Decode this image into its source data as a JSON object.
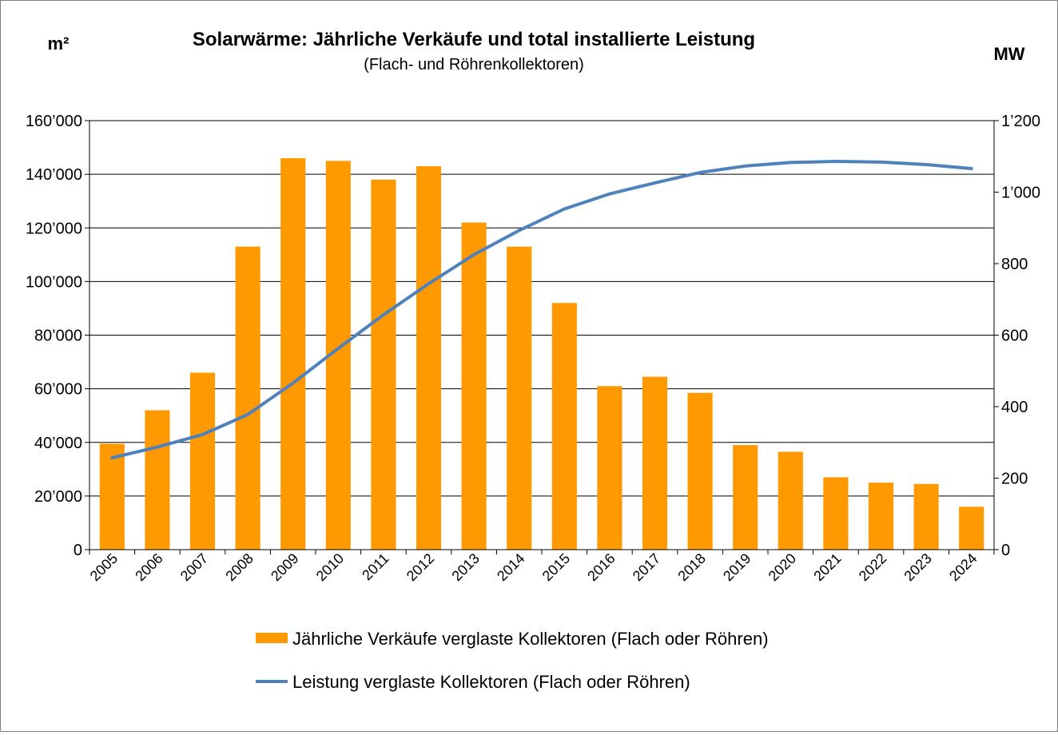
{
  "chart_data": {
    "type": "bar",
    "title": "Solarwärme: Jährliche Verkäufe und total installierte Leistung",
    "subtitle": "(Flach- und Röhrenkollektoren)",
    "ylabel_left": "m²",
    "ylabel_right": "MW",
    "categories": [
      "2005",
      "2006",
      "2007",
      "2008",
      "2009",
      "2010",
      "2011",
      "2012",
      "2013",
      "2014",
      "2015",
      "2016",
      "2017",
      "2018",
      "2019",
      "2020",
      "2021",
      "2022",
      "2023",
      "2024"
    ],
    "left_axis": {
      "ylim": [
        0,
        160000
      ],
      "ticks": [
        0,
        20000,
        40000,
        60000,
        80000,
        100000,
        120000,
        140000,
        160000
      ],
      "tick_labels": [
        "0",
        "20’000",
        "40’000",
        "60’000",
        "80’000",
        "100’000",
        "120’000",
        "140’000",
        "160’000"
      ]
    },
    "right_axis": {
      "ylim": [
        0,
        1200
      ],
      "ticks": [
        0,
        200,
        400,
        600,
        800,
        1000,
        1200
      ],
      "tick_labels": [
        "0",
        "200",
        "400",
        "600",
        "800",
        "1’000",
        "1’200"
      ]
    },
    "grid": true,
    "legend_position": "bottom",
    "series": [
      {
        "name": "Jährliche Verkäufe verglaste Kollektoren (Flach oder Röhren)",
        "type": "bar",
        "axis": "left",
        "color": "#FF9900",
        "values": [
          39500,
          52000,
          66000,
          113000,
          146000,
          145000,
          138000,
          143000,
          122000,
          113000,
          92000,
          61000,
          64500,
          58500,
          39000,
          36500,
          27000,
          25000,
          24500,
          16000
        ]
      },
      {
        "name": "Leistung verglaste Kollektoren (Flach oder Röhren)",
        "type": "line",
        "axis": "right",
        "color": "#4F81BD",
        "values": [
          257,
          287,
          322,
          378,
          466,
          563,
          657,
          744,
          825,
          893,
          953,
          995,
          1026,
          1055,
          1073,
          1083,
          1086,
          1084,
          1077,
          1066
        ]
      }
    ]
  }
}
